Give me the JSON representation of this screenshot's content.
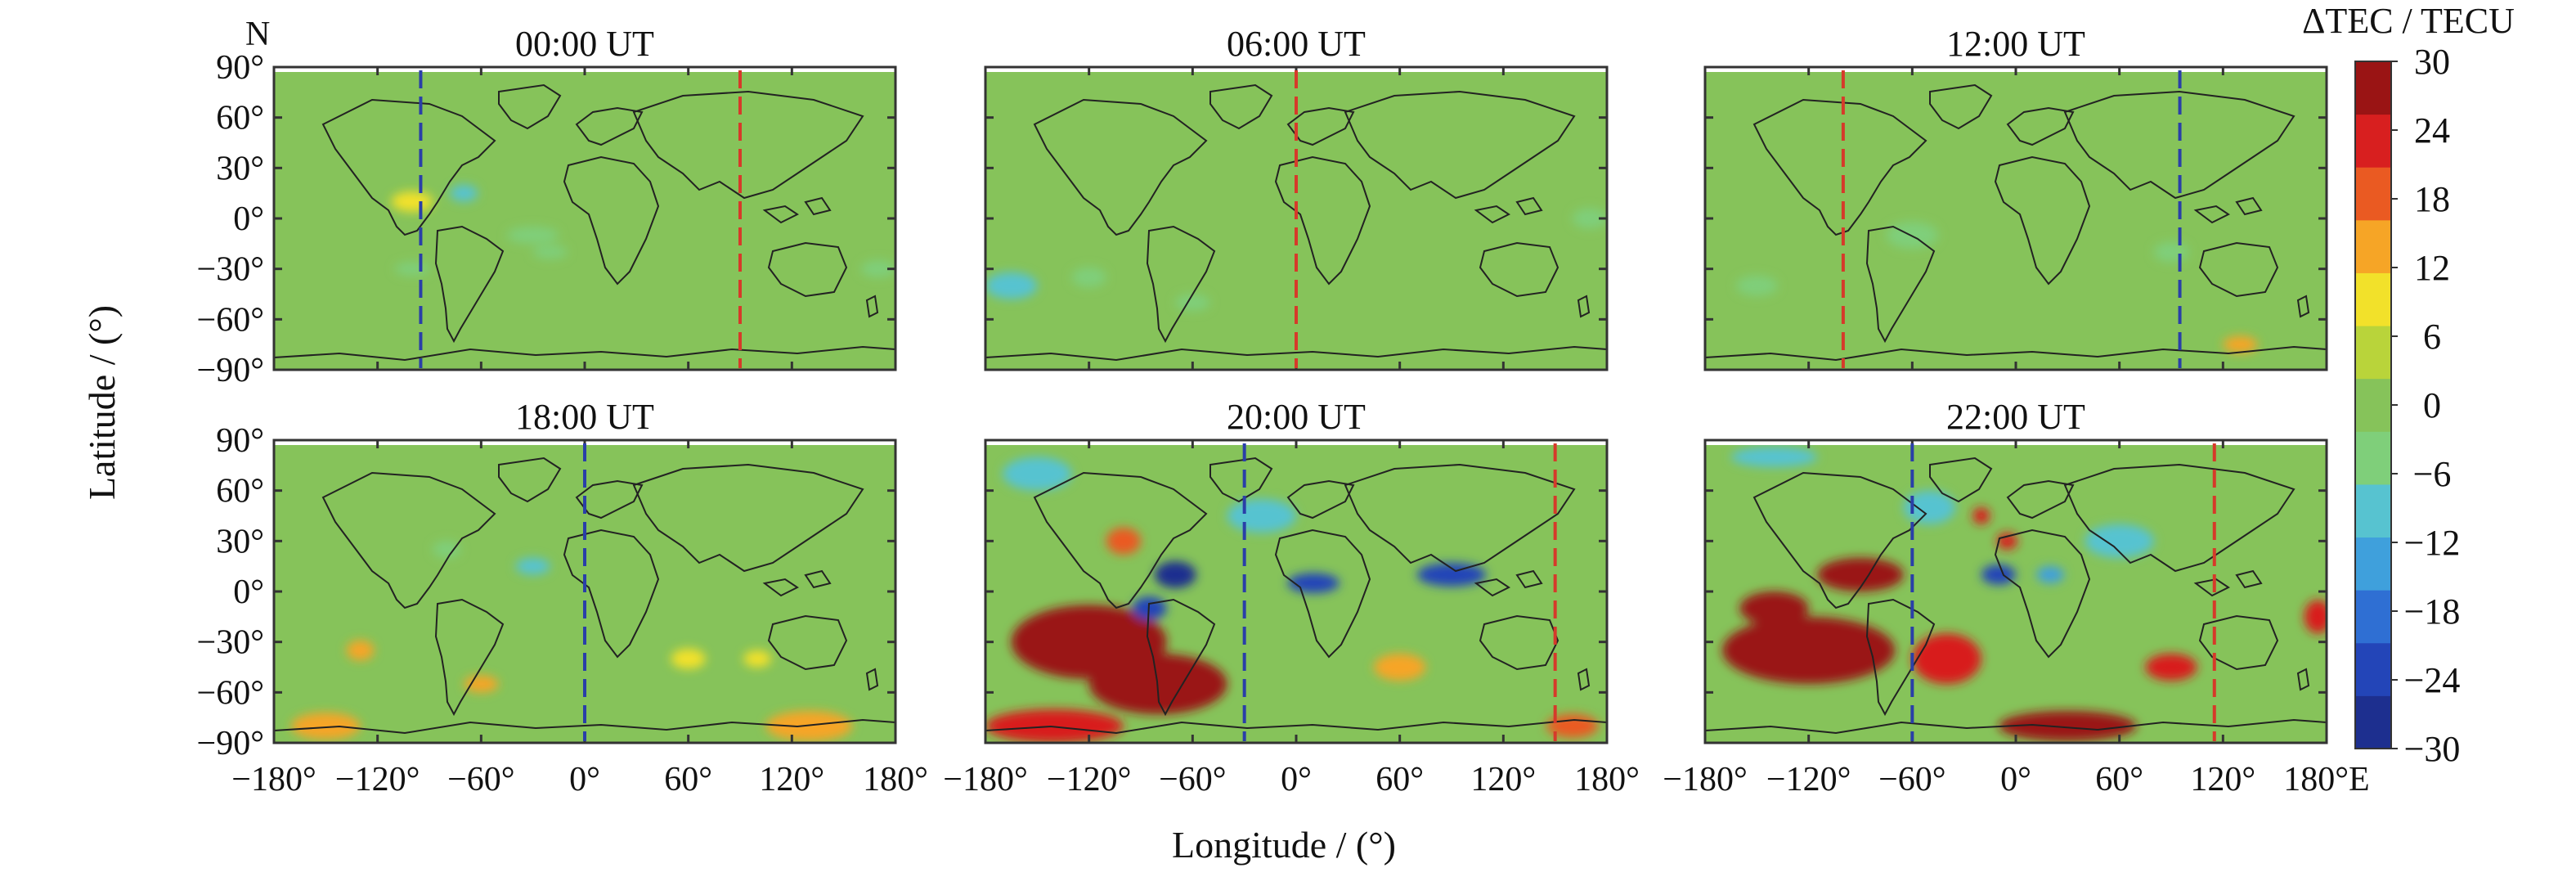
{
  "figure": {
    "hemisphere_label": "N",
    "ylabel": "Latitude / (°)",
    "xlabel": "Longitude / (°)"
  },
  "colorbar": {
    "title": "ΔTEC / TECU",
    "ticks": [
      "30",
      "24",
      "18",
      "12",
      "6",
      "0",
      "−6",
      "−12",
      "−18",
      "−24",
      "−30"
    ],
    "range": [
      -30,
      30
    ],
    "colors": [
      "#1d2f8f",
      "#2345b8",
      "#2f6fd3",
      "#3fa0dc",
      "#57c3d0",
      "#7fcf7a",
      "#86c35a",
      "#b9d43a",
      "#f2e12a",
      "#f6a526",
      "#ea5a22",
      "#d81f1f",
      "#9a1414"
    ]
  },
  "axes": {
    "y_ticks": [
      90,
      60,
      30,
      0,
      -30,
      -60,
      -90
    ],
    "y_tick_labels": [
      "90°",
      "60°",
      "30°",
      "0°",
      "−30°",
      "−60°",
      "−90°"
    ],
    "x_ticks": [
      -180,
      -120,
      -60,
      0,
      60,
      120,
      180
    ],
    "x_tick_labels_first": [
      "−180°",
      "−120°",
      "−60°",
      "0°",
      "60°",
      "120°",
      "180°"
    ],
    "x_tick_labels_mid": [
      "−180°",
      "−120°",
      "−60°",
      "0°",
      "60°",
      "120°",
      "180°"
    ],
    "x_tick_labels_last": [
      "−180°",
      "−120°",
      "−60°",
      "0°",
      "60°",
      "120°",
      "180°E"
    ]
  },
  "chart_data": [
    {
      "type": "heatmap",
      "title": "00:00 UT",
      "xlim": [
        -180,
        180
      ],
      "ylim": [
        -90,
        90
      ],
      "markers": [
        {
          "lon": -95,
          "color": "blue"
        },
        {
          "lon": 90,
          "color": "red"
        }
      ],
      "features": [
        {
          "lon": -100,
          "lat": 10,
          "value": 10,
          "rx": 12,
          "ry": 6
        },
        {
          "lon": -70,
          "lat": 15,
          "value": -8,
          "rx": 8,
          "ry": 5
        },
        {
          "lon": -30,
          "lat": -10,
          "value": -6,
          "rx": 15,
          "ry": 5
        },
        {
          "lon": -20,
          "lat": -20,
          "value": -5,
          "rx": 10,
          "ry": 4
        },
        {
          "lon": -100,
          "lat": -30,
          "value": -5,
          "rx": 10,
          "ry": 4
        },
        {
          "lon": 170,
          "lat": -30,
          "value": -5,
          "rx": 10,
          "ry": 5
        }
      ]
    },
    {
      "type": "heatmap",
      "title": "06:00 UT",
      "xlim": [
        -180,
        180
      ],
      "ylim": [
        -90,
        90
      ],
      "markers": [
        {
          "lon": 0,
          "color": "red"
        }
      ],
      "features": [
        {
          "lon": -165,
          "lat": -40,
          "value": -8,
          "rx": 15,
          "ry": 8
        },
        {
          "lon": -120,
          "lat": -35,
          "value": -6,
          "rx": 10,
          "ry": 6
        },
        {
          "lon": 170,
          "lat": 0,
          "value": -5,
          "rx": 10,
          "ry": 6
        },
        {
          "lon": -60,
          "lat": -50,
          "value": -5,
          "rx": 10,
          "ry": 5
        }
      ]
    },
    {
      "type": "heatmap",
      "title": "12:00 UT",
      "xlim": [
        -180,
        180
      ],
      "ylim": [
        -90,
        90
      ],
      "markers": [
        {
          "lon": -100,
          "color": "red"
        },
        {
          "lon": 95,
          "color": "blue"
        }
      ],
      "features": [
        {
          "lon": 130,
          "lat": -75,
          "value": 12,
          "rx": 10,
          "ry": 5
        },
        {
          "lon": -60,
          "lat": -10,
          "value": -5,
          "rx": 15,
          "ry": 8
        },
        {
          "lon": 90,
          "lat": -20,
          "value": -5,
          "rx": 10,
          "ry": 6
        },
        {
          "lon": -150,
          "lat": -40,
          "value": -5,
          "rx": 12,
          "ry": 6
        }
      ]
    },
    {
      "type": "heatmap",
      "title": "18:00 UT",
      "xlim": [
        -180,
        180
      ],
      "ylim": [
        -90,
        90
      ],
      "markers": [
        {
          "lon": 0,
          "color": "blue"
        }
      ],
      "features": [
        {
          "lon": -130,
          "lat": -35,
          "value": 12,
          "rx": 8,
          "ry": 6
        },
        {
          "lon": -150,
          "lat": -80,
          "value": 14,
          "rx": 20,
          "ry": 8
        },
        {
          "lon": -60,
          "lat": -55,
          "value": 12,
          "rx": 10,
          "ry": 5
        },
        {
          "lon": 130,
          "lat": -80,
          "value": 13,
          "rx": 25,
          "ry": 9
        },
        {
          "lon": 60,
          "lat": -40,
          "value": 10,
          "rx": 10,
          "ry": 6
        },
        {
          "lon": -30,
          "lat": 15,
          "value": -7,
          "rx": 10,
          "ry": 5
        },
        {
          "lon": -80,
          "lat": 25,
          "value": -6,
          "rx": 8,
          "ry": 5
        },
        {
          "lon": 100,
          "lat": -40,
          "value": 10,
          "rx": 8,
          "ry": 5
        }
      ]
    },
    {
      "type": "heatmap",
      "title": "20:00 UT",
      "xlim": [
        -180,
        180
      ],
      "ylim": [
        -90,
        90
      ],
      "markers": [
        {
          "lon": -30,
          "color": "blue"
        },
        {
          "lon": 150,
          "color": "red"
        }
      ],
      "features": [
        {
          "lon": -120,
          "lat": -30,
          "value": 30,
          "rx": 45,
          "ry": 22
        },
        {
          "lon": -80,
          "lat": -55,
          "value": 26,
          "rx": 40,
          "ry": 18
        },
        {
          "lon": -140,
          "lat": -80,
          "value": 24,
          "rx": 40,
          "ry": 10
        },
        {
          "lon": -70,
          "lat": 10,
          "value": -26,
          "rx": 12,
          "ry": 8
        },
        {
          "lon": -85,
          "lat": -10,
          "value": -22,
          "rx": 10,
          "ry": 7
        },
        {
          "lon": 10,
          "lat": 5,
          "value": -22,
          "rx": 15,
          "ry": 6
        },
        {
          "lon": 90,
          "lat": 10,
          "value": -24,
          "rx": 20,
          "ry": 7
        },
        {
          "lon": -20,
          "lat": 45,
          "value": -8,
          "rx": 20,
          "ry": 10
        },
        {
          "lon": 160,
          "lat": -80,
          "value": 20,
          "rx": 15,
          "ry": 7
        },
        {
          "lon": -150,
          "lat": 70,
          "value": -8,
          "rx": 20,
          "ry": 10
        },
        {
          "lon": 60,
          "lat": -45,
          "value": 14,
          "rx": 15,
          "ry": 8
        },
        {
          "lon": -100,
          "lat": 30,
          "value": 18,
          "rx": 10,
          "ry": 8
        }
      ]
    },
    {
      "type": "heatmap",
      "title": "22:00 UT",
      "xlim": [
        -180,
        180
      ],
      "ylim": [
        -90,
        90
      ],
      "markers": [
        {
          "lon": -60,
          "color": "blue"
        },
        {
          "lon": 115,
          "color": "red"
        }
      ],
      "features": [
        {
          "lon": -120,
          "lat": -35,
          "value": 32,
          "rx": 50,
          "ry": 20
        },
        {
          "lon": -140,
          "lat": -10,
          "value": 28,
          "rx": 20,
          "ry": 10
        },
        {
          "lon": -90,
          "lat": 10,
          "value": 28,
          "rx": 25,
          "ry": 10
        },
        {
          "lon": -40,
          "lat": -40,
          "value": 24,
          "rx": 20,
          "ry": 15
        },
        {
          "lon": 30,
          "lat": -80,
          "value": 26,
          "rx": 40,
          "ry": 9
        },
        {
          "lon": 90,
          "lat": -45,
          "value": 22,
          "rx": 15,
          "ry": 8
        },
        {
          "lon": -20,
          "lat": 45,
          "value": 22,
          "rx": 5,
          "ry": 5
        },
        {
          "lon": 175,
          "lat": -15,
          "value": 24,
          "rx": 8,
          "ry": 10
        },
        {
          "lon": -10,
          "lat": 10,
          "value": -22,
          "rx": 10,
          "ry": 6
        },
        {
          "lon": 20,
          "lat": 10,
          "value": -14,
          "rx": 8,
          "ry": 5
        },
        {
          "lon": -50,
          "lat": 50,
          "value": -10,
          "rx": 15,
          "ry": 10
        },
        {
          "lon": -140,
          "lat": 80,
          "value": -8,
          "rx": 25,
          "ry": 6
        },
        {
          "lon": 60,
          "lat": 30,
          "value": -8,
          "rx": 20,
          "ry": 10
        },
        {
          "lon": -5,
          "lat": 30,
          "value": 24,
          "rx": 6,
          "ry": 5
        }
      ]
    }
  ]
}
